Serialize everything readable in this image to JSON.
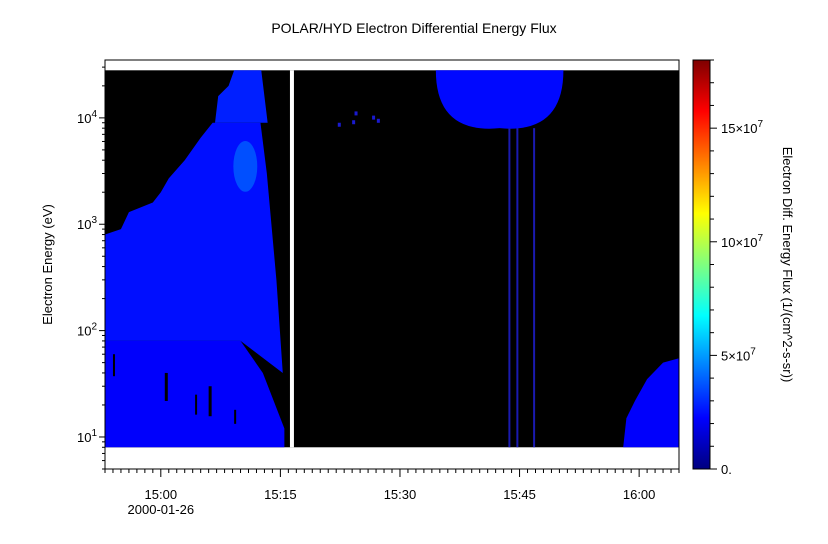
{
  "chart_data": {
    "type": "heatmap",
    "title": "POLAR/HYD  Electron Differential Energy Flux",
    "xlabel": "",
    "ylabel": "Electron Energy (eV)",
    "colorbar_label": "Electron Diff. Energy Flux (1/(cm^2-s-sr))",
    "x_tick_labels": [
      "15:00",
      "15:15",
      "15:30",
      "15:45",
      "16:00"
    ],
    "x_tick_minutes_after_1500": [
      0,
      15,
      30,
      45,
      60
    ],
    "x_date_label": "2000-01-26",
    "x_range_minutes_after_1500": [
      -7,
      65
    ],
    "y_scale": "log",
    "y_tick_labels": [
      {
        "mantissa": "10",
        "exp": "1"
      },
      {
        "mantissa": "10",
        "exp": "2"
      },
      {
        "mantissa": "10",
        "exp": "3"
      },
      {
        "mantissa": "10",
        "exp": "4"
      }
    ],
    "y_tick_values": [
      10,
      100,
      1000,
      10000
    ],
    "y_range": [
      5,
      35000
    ],
    "data_range_energy_ev": [
      8,
      28000
    ],
    "colorbar_tick_labels": [
      {
        "text": "0.",
        "value": 0
      },
      {
        "text": "5×10",
        "exp": "7",
        "value": 50000000
      },
      {
        "text": "10×10",
        "exp": "7",
        "value": 100000000
      },
      {
        "text": "15×10",
        "exp": "7",
        "value": 150000000
      }
    ],
    "colorbar_range": [
      0,
      180000000
    ],
    "colormap": [
      "#00007f",
      "#0000ff",
      "#007fff",
      "#00ffff",
      "#7fff7f",
      "#ffff00",
      "#ff7f00",
      "#ff0000",
      "#7f0000"
    ],
    "background_color": "#000000",
    "data_gap_minutes_after_1500": [
      16.2,
      16.7
    ],
    "regions": [
      {
        "name": "low-energy-band",
        "minutes": [
          -7,
          15.5
        ],
        "energy_ev": [
          8,
          80
        ],
        "flux": 22000000
      },
      {
        "name": "sweep-main",
        "minutes": [
          -7,
          13
        ],
        "energy_ev": [
          80,
          3000
        ],
        "flux": 25000000
      },
      {
        "name": "peak-core",
        "minutes": [
          9,
          12
        ],
        "energy_ev": [
          2000,
          6000
        ],
        "flux": 38000000
      },
      {
        "name": "high-energy-top",
        "minutes": [
          6.5,
          12.5
        ],
        "energy_ev": [
          6000,
          28000
        ],
        "flux": 28000000
      },
      {
        "name": "upper-arc",
        "minutes": [
          34.5,
          50.5
        ],
        "energy_ev": [
          8000,
          28000
        ],
        "flux": 24000000
      },
      {
        "name": "late-patch",
        "minutes": [
          58,
          65
        ],
        "energy_ev": [
          8,
          60
        ],
        "flux": 22000000
      }
    ],
    "grid": false,
    "legend": "colorbar-right"
  }
}
